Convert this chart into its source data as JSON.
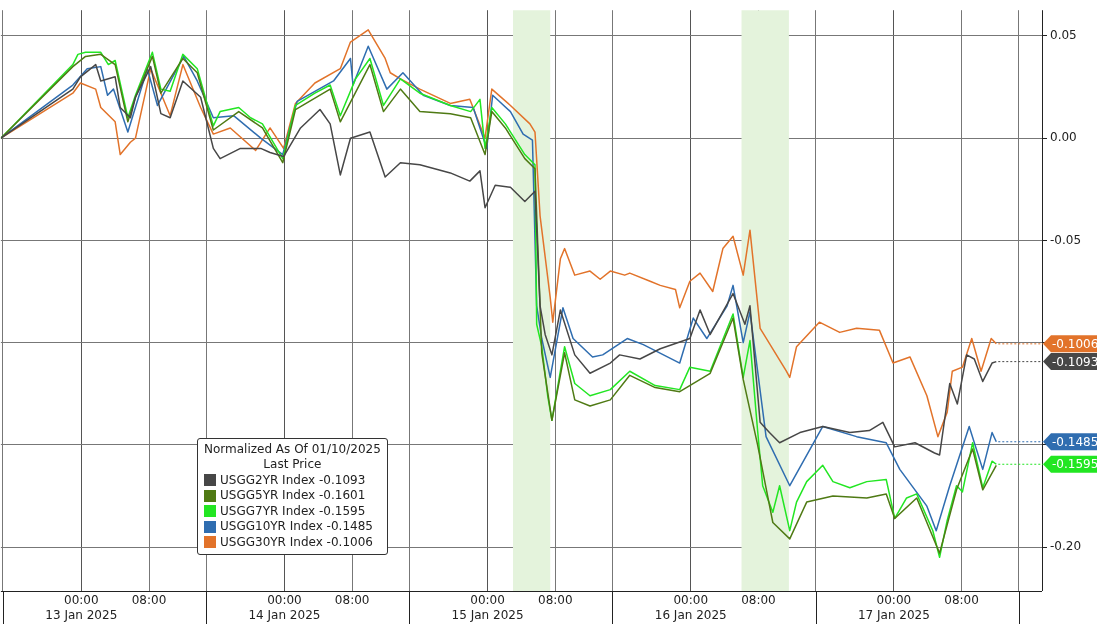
{
  "chart_data": {
    "type": "line",
    "legend_title": "Normalized As Of 01/10/2025\nLast Price",
    "legend": "bottom left",
    "grid": true,
    "line_style": "solid",
    "marker": "none",
    "xlim": [
      "2025-01-12T14:30",
      "2025-01-17T17:30"
    ],
    "xticks": [
      {
        "value": "2025-01-12T14:45",
        "label": null
      },
      {
        "value": "2025-01-13T00:00",
        "label": "00:00\n13 Jan 2025"
      },
      {
        "value": "2025-01-13T08:00",
        "label": "08:00"
      },
      {
        "value": "2025-01-13T14:45",
        "label": null
      },
      {
        "value": "2025-01-14T00:00",
        "label": "00:00\n14 Jan 2025"
      },
      {
        "value": "2025-01-14T08:00",
        "label": "08:00"
      },
      {
        "value": "2025-01-14T14:45",
        "label": null
      },
      {
        "value": "2025-01-15T00:00",
        "label": "00:00\n15 Jan 2025"
      },
      {
        "value": "2025-01-15T08:00",
        "label": "08:00"
      },
      {
        "value": "2025-01-15T14:45",
        "label": null
      },
      {
        "value": "2025-01-16T00:00",
        "label": "00:00\n16 Jan 2025"
      },
      {
        "value": "2025-01-16T08:00",
        "label": "08:00"
      },
      {
        "value": "2025-01-16T14:45",
        "label": null
      },
      {
        "value": "2025-01-17T00:00",
        "label": "00:00\n17 Jan 2025"
      },
      {
        "value": "2025-01-17T08:00",
        "label": "08:00"
      },
      {
        "value": "2025-01-17T14:45",
        "label": null
      }
    ],
    "ylim": [
      -0.2215,
      0.0626
    ],
    "yticks": [
      0.05,
      {
        "value": 0,
        "label": "0.00"
      },
      -0.05,
      {
        "value": -0.1,
        "label": null
      },
      {
        "value": -0.15,
        "label": null
      },
      {
        "value": -0.2,
        "label": "-0.20"
      }
    ],
    "bands": [
      {
        "axis": "x",
        "from": "2025-01-15T03:00",
        "to": "2025-01-15T07:24",
        "color": "#e4f3dc"
      },
      {
        "axis": "x",
        "from": "2025-01-16T06:00",
        "to": "2025-01-16T11:36",
        "color": "#e4f3dc"
      }
    ],
    "series": [
      {
        "name": "USGG2YR Index -0.1093",
        "color": "#474747",
        "x": [
          "2025-01-12T14:30",
          "2025-01-12T23:00",
          "2025-01-12T23:54",
          "2025-01-13T01:42",
          "2025-01-13T02:18",
          "2025-01-13T04:00",
          "2025-01-13T04:36",
          "2025-01-13T05:48",
          "2025-01-13T06:24",
          "2025-01-13T08:12",
          "2025-01-13T09:24",
          "2025-01-13T10:30",
          "2025-01-13T12:00",
          "2025-01-13T14:06",
          "2025-01-13T15:36",
          "2025-01-13T16:24",
          "2025-01-13T18:48",
          "2025-01-13T21:12",
          "2025-01-13T22:18",
          "2025-01-13T23:54",
          "2025-01-14T01:54",
          "2025-01-14T04:12",
          "2025-01-14T05:24",
          "2025-01-14T06:36",
          "2025-01-14T07:48",
          "2025-01-14T10:06",
          "2025-01-14T11:54",
          "2025-01-14T13:42",
          "2025-01-14T16:00",
          "2025-01-14T19:36",
          "2025-01-14T21:54",
          "2025-01-14T23:06",
          "2025-01-14T23:42",
          "2025-01-15T00:54",
          "2025-01-15T02:42",
          "2025-01-15T04:24",
          "2025-01-15T05:36",
          "2025-01-15T06:12",
          "2025-01-15T06:48",
          "2025-01-15T07:36",
          "2025-01-15T08:36",
          "2025-01-15T10:18",
          "2025-01-15T12:06",
          "2025-01-15T14:30",
          "2025-01-15T15:36",
          "2025-01-15T18:00",
          "2025-01-15T20:24",
          "2025-01-15T23:54",
          "2025-01-16T01:06",
          "2025-01-16T02:18",
          "2025-01-16T05:00",
          "2025-01-16T06:24",
          "2025-01-16T07:00",
          "2025-01-16T08:12",
          "2025-01-16T09:18",
          "2025-01-16T10:30",
          "2025-01-16T12:54",
          "2025-01-16T15:36",
          "2025-01-16T18:48",
          "2025-01-16T21:06",
          "2025-01-16T22:42",
          "2025-01-17T00:06",
          "2025-01-17T02:30",
          "2025-01-17T04:48",
          "2025-01-17T05:24",
          "2025-01-17T06:36",
          "2025-01-17T07:30",
          "2025-01-17T08:36",
          "2025-01-17T09:30",
          "2025-01-17T10:30",
          "2025-01-17T11:36",
          "2025-01-17T12:06"
        ],
        "values": [
          0,
          0.024,
          0.03,
          0.036,
          0.028,
          0.03,
          0.015,
          0.01,
          0.02,
          0.035,
          0.012,
          0.01,
          0.028,
          0.02,
          -0.005,
          -0.01,
          -0.005,
          -0.005,
          -0.007,
          -0.009,
          0.005,
          0.014,
          0.007,
          -0.018,
          0.0,
          0.003,
          -0.019,
          -0.012,
          -0.013,
          -0.017,
          -0.021,
          -0.016,
          -0.034,
          -0.023,
          -0.024,
          -0.031,
          -0.026,
          -0.082,
          -0.096,
          -0.106,
          -0.084,
          -0.106,
          -0.115,
          -0.11,
          -0.106,
          -0.108,
          -0.103,
          -0.098,
          -0.084,
          -0.096,
          -0.076,
          -0.091,
          -0.082,
          -0.139,
          -0.144,
          -0.149,
          -0.144,
          -0.141,
          -0.144,
          -0.143,
          -0.139,
          -0.151,
          -0.149,
          -0.154,
          -0.155,
          -0.12,
          -0.13,
          -0.106,
          -0.108,
          -0.119,
          -0.11,
          -0.1093
        ],
        "value_labels": [
          null,
          null,
          null,
          null,
          null,
          null,
          null,
          null,
          null,
          null,
          null,
          null,
          null,
          null,
          null,
          null,
          null,
          null,
          null,
          null,
          null,
          null,
          null,
          null,
          null,
          null,
          null,
          null,
          null,
          null,
          null,
          null,
          null,
          null,
          null,
          null,
          null,
          null,
          null,
          null,
          null,
          null,
          null,
          null,
          null,
          null,
          null,
          null,
          null,
          null,
          null,
          null,
          null,
          null,
          null,
          null,
          null,
          null,
          null,
          null,
          null,
          null,
          null,
          null,
          null,
          null,
          null,
          null,
          null,
          null,
          null,
          "-0.1093"
        ]
      },
      {
        "name": "USGG5YR Index -0.1601",
        "color": "#4f7a14",
        "x": [
          "2025-01-12T14:30",
          "2025-01-12T23:00",
          "2025-01-13T00:30",
          "2025-01-13T02:18",
          "2025-01-13T04:00",
          "2025-01-13T05:30",
          "2025-01-13T06:24",
          "2025-01-13T08:24",
          "2025-01-13T09:24",
          "2025-01-13T12:00",
          "2025-01-13T13:42",
          "2025-01-13T15:36",
          "2025-01-13T18:36",
          "2025-01-13T21:24",
          "2025-01-13T23:48",
          "2025-01-14T01:18",
          "2025-01-14T05:24",
          "2025-01-14T06:36",
          "2025-01-14T10:06",
          "2025-01-14T11:42",
          "2025-01-14T13:42",
          "2025-01-14T16:00",
          "2025-01-14T19:36",
          "2025-01-14T22:00",
          "2025-01-14T23:42",
          "2025-01-15T00:30",
          "2025-01-15T02:06",
          "2025-01-15T04:24",
          "2025-01-15T05:36",
          "2025-01-15T06:24",
          "2025-01-15T07:36",
          "2025-01-15T09:06",
          "2025-01-15T10:18",
          "2025-01-15T12:06",
          "2025-01-15T14:30",
          "2025-01-15T16:48",
          "2025-01-15T19:48",
          "2025-01-15T22:42",
          "2025-01-16T02:18",
          "2025-01-16T05:00",
          "2025-01-16T06:12",
          "2025-01-16T07:54",
          "2025-01-16T09:42",
          "2025-01-16T11:42",
          "2025-01-16T13:42",
          "2025-01-16T16:48",
          "2025-01-16T20:48",
          "2025-01-16T23:06",
          "2025-01-17T00:06",
          "2025-01-17T02:42",
          "2025-01-17T05:24",
          "2025-01-17T07:24",
          "2025-01-17T09:18",
          "2025-01-17T10:30",
          "2025-01-17T12:06"
        ],
        "values": [
          0,
          0.035,
          0.04,
          0.041,
          0.036,
          0.008,
          0.02,
          0.04,
          0.022,
          0.039,
          0.032,
          0.004,
          0.013,
          0.005,
          -0.012,
          0.014,
          0.024,
          0.008,
          0.036,
          0.013,
          0.024,
          0.013,
          0.012,
          0.01,
          -0.008,
          0.013,
          0.005,
          -0.01,
          -0.015,
          -0.105,
          -0.138,
          -0.105,
          -0.128,
          -0.131,
          -0.128,
          -0.116,
          -0.122,
          -0.124,
          -0.115,
          -0.088,
          -0.118,
          -0.15,
          -0.188,
          -0.196,
          -0.178,
          -0.175,
          -0.176,
          -0.174,
          -0.186,
          -0.176,
          -0.203,
          -0.172,
          -0.152,
          -0.172,
          -0.1601
        ]
      },
      {
        "name": "USGG7YR Index -0.1595",
        "color": "#22e622",
        "x": [
          "2025-01-12T14:30",
          "2025-01-12T23:00",
          "2025-01-12T23:36",
          "2025-01-13T00:30",
          "2025-01-13T02:18",
          "2025-01-13T03:12",
          "2025-01-13T04:00",
          "2025-01-13T05:30",
          "2025-01-13T06:24",
          "2025-01-13T08:24",
          "2025-01-13T09:24",
          "2025-01-13T10:30",
          "2025-01-13T12:00",
          "2025-01-13T13:42",
          "2025-01-13T15:36",
          "2025-01-13T16:24",
          "2025-01-13T18:36",
          "2025-01-13T20:00",
          "2025-01-13T21:24",
          "2025-01-13T23:48",
          "2025-01-14T01:18",
          "2025-01-14T03:36",
          "2025-01-14T05:24",
          "2025-01-14T06:36",
          "2025-01-14T08:24",
          "2025-01-14T10:06",
          "2025-01-14T11:42",
          "2025-01-14T13:42",
          "2025-01-14T16:00",
          "2025-01-14T19:36",
          "2025-01-14T22:00",
          "2025-01-14T23:06",
          "2025-01-14T23:42",
          "2025-01-15T00:30",
          "2025-01-15T02:06",
          "2025-01-15T04:24",
          "2025-01-15T05:36",
          "2025-01-15T05:48",
          "2025-01-15T06:24",
          "2025-01-15T07:06",
          "2025-01-15T07:36",
          "2025-01-15T08:36",
          "2025-01-15T09:06",
          "2025-01-15T10:18",
          "2025-01-15T12:06",
          "2025-01-15T14:30",
          "2025-01-15T16:48",
          "2025-01-15T19:48",
          "2025-01-15T22:42",
          "2025-01-15T23:54",
          "2025-01-16T02:18",
          "2025-01-16T05:00",
          "2025-01-16T06:12",
          "2025-01-16T07:00",
          "2025-01-16T07:54",
          "2025-01-16T08:30",
          "2025-01-16T09:42",
          "2025-01-16T10:30",
          "2025-01-16T11:42",
          "2025-01-16T12:30",
          "2025-01-16T13:42",
          "2025-01-16T15:36",
          "2025-01-16T16:48",
          "2025-01-16T18:48",
          "2025-01-16T20:48",
          "2025-01-16T23:06",
          "2025-01-17T00:06",
          "2025-01-17T01:30",
          "2025-01-17T02:42",
          "2025-01-17T04:36",
          "2025-01-17T05:24",
          "2025-01-17T06:18",
          "2025-01-17T07:24",
          "2025-01-17T08:06",
          "2025-01-17T09:18",
          "2025-01-17T10:30",
          "2025-01-17T11:36",
          "2025-01-17T12:06"
        ],
        "values": [
          0,
          0.036,
          0.041,
          0.042,
          0.042,
          0.036,
          0.038,
          0.01,
          0.021,
          0.042,
          0.024,
          0.023,
          0.041,
          0.034,
          0.006,
          0.013,
          0.015,
          0.01,
          0.007,
          -0.01,
          0.016,
          0.022,
          0.026,
          0.011,
          0.029,
          0.039,
          0.016,
          0.029,
          0.022,
          0.016,
          0.013,
          0.019,
          -0.005,
          0.015,
          0.007,
          -0.008,
          -0.013,
          -0.091,
          -0.102,
          -0.126,
          -0.138,
          -0.114,
          -0.102,
          -0.12,
          -0.126,
          -0.123,
          -0.114,
          -0.121,
          -0.123,
          -0.112,
          -0.114,
          -0.086,
          -0.117,
          -0.099,
          -0.143,
          -0.17,
          -0.183,
          -0.17,
          -0.192,
          -0.178,
          -0.168,
          -0.16,
          -0.168,
          -0.171,
          -0.168,
          -0.167,
          -0.186,
          -0.176,
          -0.174,
          -0.192,
          -0.205,
          -0.187,
          -0.17,
          -0.173,
          -0.149,
          -0.171,
          -0.158,
          -0.1595
        ],
        "value_labels": [
          null,
          null,
          null,
          null,
          null,
          null,
          null,
          null,
          null,
          null,
          null,
          null,
          null,
          null,
          null,
          null,
          null,
          null,
          null,
          null,
          null,
          null,
          null,
          null,
          null,
          null,
          null,
          null,
          null,
          null,
          null,
          null,
          null,
          null,
          null,
          null,
          null,
          null,
          null,
          null,
          null,
          null,
          null,
          null,
          null,
          null,
          null,
          null,
          null,
          null,
          null,
          null,
          null,
          null,
          null,
          null,
          null,
          null,
          null,
          null,
          null,
          null,
          null,
          null,
          null,
          null,
          null,
          null,
          null,
          null,
          null,
          null,
          null,
          null,
          null,
          null,
          null,
          "-0.1595"
        ]
      },
      {
        "name": "USGG10YR Index -0.1485",
        "color": "#2f6db0",
        "x": [
          "2025-01-12T14:30",
          "2025-01-12T23:00",
          "2025-01-13T00:42",
          "2025-01-13T02:18",
          "2025-01-13T03:06",
          "2025-01-13T03:48",
          "2025-01-13T05:30",
          "2025-01-13T07:48",
          "2025-01-13T09:00",
          "2025-01-13T12:06",
          "2025-01-13T13:42",
          "2025-01-13T15:36",
          "2025-01-13T18:00",
          "2025-01-13T21:12",
          "2025-01-13T23:48",
          "2025-01-14T01:30",
          "2025-01-14T05:48",
          "2025-01-14T07:48",
          "2025-01-14T08:06",
          "2025-01-14T09:54",
          "2025-01-14T12:06",
          "2025-01-14T14:00",
          "2025-01-14T16:24",
          "2025-01-14T19:36",
          "2025-01-14T22:18",
          "2025-01-14T23:54",
          "2025-01-15T00:36",
          "2025-01-15T02:42",
          "2025-01-15T04:12",
          "2025-01-15T05:18",
          "2025-01-15T05:48",
          "2025-01-15T06:24",
          "2025-01-15T07:24",
          "2025-01-15T08:54",
          "2025-01-15T10:06",
          "2025-01-15T12:24",
          "2025-01-15T13:36",
          "2025-01-15T16:30",
          "2025-01-15T18:24",
          "2025-01-15T22:42",
          "2025-01-16T00:18",
          "2025-01-16T01:54",
          "2025-01-16T04:18",
          "2025-01-16T05:00",
          "2025-01-16T06:12",
          "2025-01-16T07:00",
          "2025-01-16T08:54",
          "2025-01-16T11:42",
          "2025-01-16T15:36",
          "2025-01-16T19:36",
          "2025-01-16T23:06",
          "2025-01-17T00:42",
          "2025-01-17T03:54",
          "2025-01-17T05:00",
          "2025-01-17T06:36",
          "2025-01-17T08:54",
          "2025-01-17T10:30",
          "2025-01-17T11:36",
          "2025-01-17T12:06"
        ],
        "values": [
          0,
          0.026,
          0.034,
          0.035,
          0.021,
          0.024,
          0.003,
          0.034,
          0.016,
          0.04,
          0.028,
          0.01,
          0.011,
          0.0,
          -0.008,
          0.018,
          0.028,
          0.039,
          0.026,
          0.045,
          0.024,
          0.032,
          0.021,
          0.016,
          0.015,
          -0.005,
          0.021,
          0.013,
          0.002,
          -0.001,
          -0.082,
          -0.098,
          -0.117,
          -0.083,
          -0.098,
          -0.107,
          -0.106,
          -0.098,
          -0.101,
          -0.11,
          -0.088,
          -0.098,
          -0.082,
          -0.072,
          -0.1,
          -0.085,
          -0.146,
          -0.17,
          -0.141,
          -0.146,
          -0.149,
          -0.162,
          -0.18,
          -0.192,
          -0.17,
          -0.141,
          -0.162,
          -0.144,
          -0.1485
        ],
        "value_labels": [
          null,
          null,
          null,
          null,
          null,
          null,
          null,
          null,
          null,
          null,
          null,
          null,
          null,
          null,
          null,
          null,
          null,
          null,
          null,
          null,
          null,
          null,
          null,
          null,
          null,
          null,
          null,
          null,
          null,
          null,
          null,
          null,
          null,
          null,
          null,
          null,
          null,
          null,
          null,
          null,
          null,
          null,
          null,
          null,
          null,
          null,
          null,
          null,
          null,
          null,
          null,
          null,
          null,
          null,
          null,
          null,
          null,
          null,
          "-0.1485"
        ]
      },
      {
        "name": "USGG30YR Index -0.1006",
        "color": "#e2732a",
        "x": [
          "2025-01-12T14:30",
          "2025-01-12T23:00",
          "2025-01-12T23:54",
          "2025-01-13T01:42",
          "2025-01-13T02:18",
          "2025-01-13T04:00",
          "2025-01-13T04:36",
          "2025-01-13T05:48",
          "2025-01-13T06:24",
          "2025-01-13T08:12",
          "2025-01-13T10:30",
          "2025-01-13T12:00",
          "2025-01-13T14:06",
          "2025-01-13T15:36",
          "2025-01-13T17:36",
          "2025-01-13T20:36",
          "2025-01-13T22:18",
          "2025-01-13T23:54",
          "2025-01-14T01:18",
          "2025-01-14T03:36",
          "2025-01-14T06:36",
          "2025-01-14T07:48",
          "2025-01-14T09:54",
          "2025-01-14T11:54",
          "2025-01-14T12:30",
          "2025-01-14T13:42",
          "2025-01-14T16:00",
          "2025-01-14T19:36",
          "2025-01-14T21:54",
          "2025-01-14T23:42",
          "2025-01-15T00:30",
          "2025-01-15T02:42",
          "2025-01-15T05:00",
          "2025-01-15T05:36",
          "2025-01-15T06:12",
          "2025-01-15T06:48",
          "2025-01-15T07:24",
          "2025-01-15T07:42",
          "2025-01-15T08:36",
          "2025-01-15T09:06",
          "2025-01-15T10:18",
          "2025-01-15T12:06",
          "2025-01-15T13:18",
          "2025-01-15T14:30",
          "2025-01-15T16:12",
          "2025-01-15T16:48",
          "2025-01-15T19:12",
          "2025-01-15T20:24",
          "2025-01-15T22:12",
          "2025-01-15T22:42",
          "2025-01-15T23:54",
          "2025-01-16T01:06",
          "2025-01-16T02:36",
          "2025-01-16T03:48",
          "2025-01-16T05:00",
          "2025-01-16T06:12",
          "2025-01-16T07:00",
          "2025-01-16T08:12",
          "2025-01-16T11:18",
          "2025-01-16T11:42",
          "2025-01-16T12:30",
          "2025-01-16T15:12",
          "2025-01-16T17:36",
          "2025-01-16T19:36",
          "2025-01-16T22:18",
          "2025-01-16T23:54",
          "2025-01-17T01:54",
          "2025-01-17T03:54",
          "2025-01-17T05:12",
          "2025-01-17T06:18",
          "2025-01-17T06:54",
          "2025-01-17T08:06",
          "2025-01-17T09:12",
          "2025-01-17T10:18",
          "2025-01-17T11:30",
          "2025-01-17T12:06"
        ],
        "values": [
          0,
          0.022,
          0.027,
          0.024,
          0.015,
          0.008,
          -0.008,
          -0.002,
          0.0,
          0.034,
          0.011,
          0.036,
          0.015,
          0.002,
          0.005,
          -0.006,
          0.005,
          -0.005,
          0.017,
          0.027,
          0.034,
          0.047,
          0.053,
          0.039,
          0.032,
          0.029,
          0.024,
          0.017,
          0.019,
          0.0,
          0.024,
          0.016,
          0.007,
          0.003,
          -0.038,
          -0.058,
          -0.078,
          -0.09,
          -0.059,
          -0.054,
          -0.067,
          -0.065,
          -0.069,
          -0.065,
          -0.067,
          -0.066,
          -0.07,
          -0.072,
          -0.074,
          -0.083,
          -0.07,
          -0.066,
          -0.075,
          -0.054,
          -0.048,
          -0.067,
          -0.045,
          -0.093,
          -0.114,
          -0.117,
          -0.102,
          -0.09,
          -0.095,
          -0.093,
          -0.094,
          -0.11,
          -0.107,
          -0.126,
          -0.146,
          -0.134,
          -0.114,
          -0.112,
          -0.098,
          -0.114,
          -0.098,
          -0.1006
        ],
        "value_labels": [
          null,
          null,
          null,
          null,
          null,
          null,
          null,
          null,
          null,
          null,
          null,
          null,
          null,
          null,
          null,
          null,
          null,
          null,
          null,
          null,
          null,
          null,
          null,
          null,
          null,
          null,
          null,
          null,
          null,
          null,
          null,
          null,
          null,
          null,
          null,
          null,
          null,
          null,
          null,
          null,
          null,
          null,
          null,
          null,
          null,
          null,
          null,
          null,
          null,
          null,
          null,
          null,
          null,
          null,
          null,
          null,
          null,
          null,
          null,
          null,
          null,
          null,
          null,
          null,
          null,
          null,
          null,
          null,
          null,
          null,
          null,
          null,
          null,
          null,
          null,
          "-0.1006"
        ]
      }
    ]
  }
}
